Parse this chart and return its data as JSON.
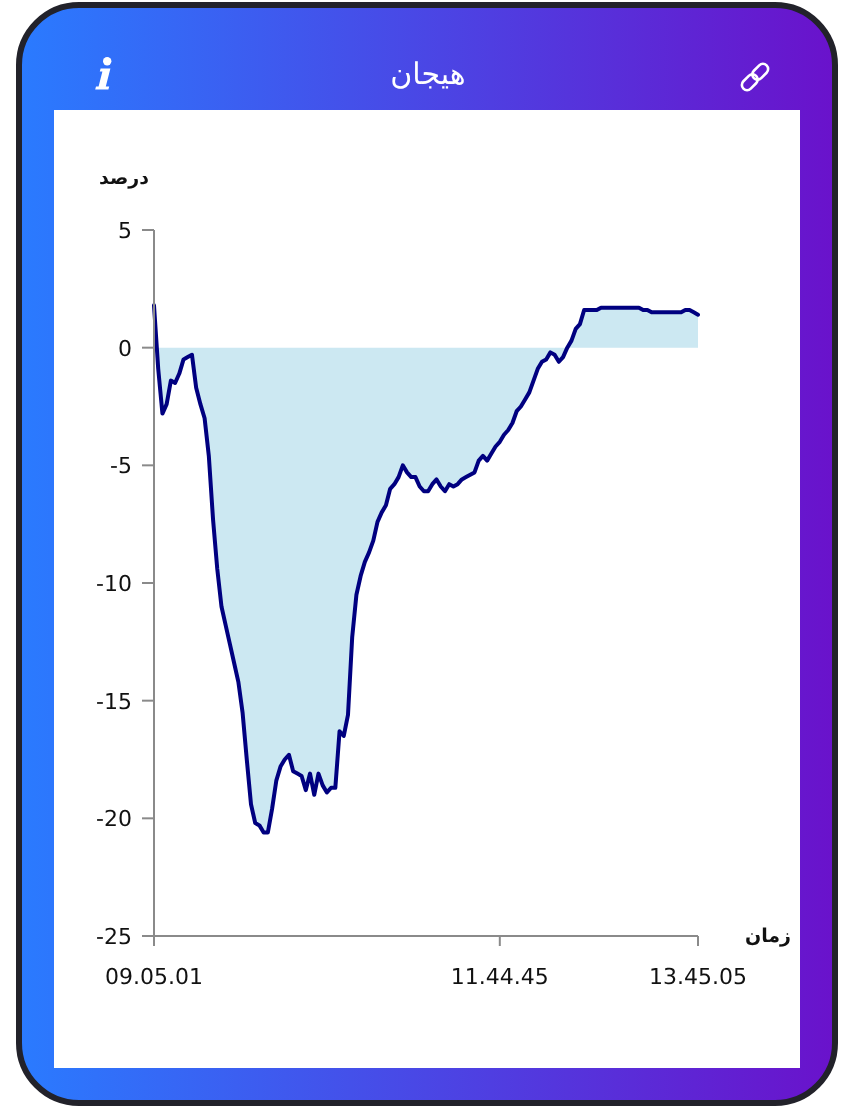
{
  "chart_data": {
    "type": "area",
    "title": "هیجان",
    "ylabel": "درصد",
    "xlabel": "زمان",
    "categories": [
      "09.05.01",
      null,
      null,
      null,
      null,
      null,
      null,
      null,
      null,
      null,
      null,
      null,
      null,
      null,
      null,
      null,
      null,
      null,
      null,
      null,
      null,
      null,
      null,
      null,
      null,
      null,
      null,
      null,
      null,
      null,
      null,
      null,
      null,
      null,
      null,
      null,
      null,
      null,
      null,
      null,
      null,
      null,
      null,
      null,
      null,
      null,
      null,
      null,
      null,
      null,
      null,
      null,
      null,
      null,
      null,
      null,
      null,
      null,
      null,
      null,
      null,
      null,
      null,
      null,
      null,
      null,
      null,
      null,
      null,
      null,
      null,
      null,
      null,
      null,
      null,
      null,
      null,
      null,
      null,
      null,
      null,
      null,
      "11.44.45",
      null,
      null,
      null,
      null,
      null,
      null,
      null,
      null,
      null,
      null,
      null,
      null,
      null,
      null,
      null,
      null,
      null,
      null,
      null,
      null,
      null,
      null,
      null,
      null,
      null,
      null,
      null,
      null,
      null,
      null,
      null,
      null,
      null,
      null,
      null,
      null,
      null,
      null,
      null,
      null,
      null,
      null,
      null,
      null,
      null,
      null,
      "13.45.05"
    ],
    "series": [
      {
        "color": "#000080",
        "values": [
          1.8,
          -0.9,
          -2.8,
          -2.4,
          -1.4,
          -1.5,
          -1.1,
          -0.5,
          -0.4,
          -0.3,
          -1.7,
          -2.4,
          -3.0,
          -4.6,
          -7.3,
          -9.4,
          -11.0,
          -11.8,
          -12.6,
          -13.4,
          -14.2,
          -15.5,
          -17.5,
          -19.4,
          -20.2,
          -20.3,
          -20.6,
          -20.6,
          -19.6,
          -18.4,
          -17.8,
          -17.5,
          -17.3,
          -18.0,
          -18.1,
          -18.2,
          -18.8,
          -18.1,
          -19.0,
          -18.1,
          -18.6,
          -18.9,
          -18.7,
          -18.7,
          -16.3,
          -16.5,
          -15.6,
          -12.3,
          -10.5,
          -9.7,
          -9.1,
          -8.7,
          -8.2,
          -7.4,
          -7.0,
          -6.7,
          -6.0,
          -5.8,
          -5.5,
          -5.0,
          -5.3,
          -5.5,
          -5.5,
          -5.9,
          -6.1,
          -6.1,
          -5.8,
          -5.6,
          -5.9,
          -6.1,
          -5.8,
          -5.9,
          -5.8,
          -5.6,
          -5.5,
          -5.4,
          -5.3,
          -4.8,
          -4.6,
          -4.8,
          -4.5,
          -4.2,
          -4.0,
          -3.7,
          -3.5,
          -3.2,
          -2.7,
          -2.5,
          -2.2,
          -1.9,
          -1.4,
          -0.9,
          -0.6,
          -0.5,
          -0.2,
          -0.3,
          -0.6,
          -0.4,
          0,
          0.3,
          0.8,
          1.0,
          1.6,
          1.6,
          1.6,
          1.6,
          1.7,
          1.7,
          1.7,
          1.7,
          1.7,
          1.7,
          1.7,
          1.7,
          1.7,
          1.7,
          1.6,
          1.6,
          1.5,
          1.5,
          1.5,
          1.5,
          1.5,
          1.5,
          1.5,
          1.5,
          1.6,
          1.6,
          1.5,
          1.4
        ]
      }
    ],
    "ylim": [
      -25,
      5
    ],
    "yticks": [
      -25,
      -20,
      -15,
      -10,
      -5,
      0,
      5
    ]
  }
}
